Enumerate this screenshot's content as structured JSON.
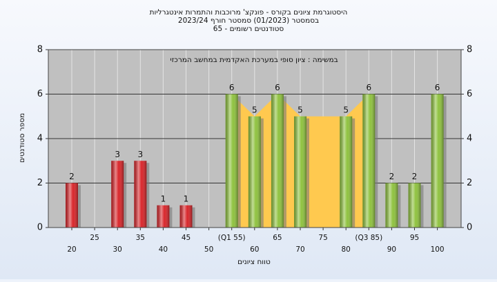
{
  "chart_data": {
    "type": "bar",
    "title": [
      "היסטוגרמת ציונים בקורס - פונקצ' מרוכבות והתמרות אינטגרליות",
      "בסמסטר  (01/2023)  סמסטר חורף 2023/24",
      "סטודנטים רשומים - 65"
    ],
    "annotation": "במשימה : ציון סופי במערכת האקדמית במחשב המרכזי",
    "xlabel": "טווח ציונים",
    "ylabel": "מספר סטודנטים",
    "categories": [
      "20",
      "25",
      "30",
      "35",
      "40",
      "45",
      "50",
      "(Q1 55)",
      "60",
      "65",
      "70",
      "75",
      "80",
      "(Q3 85)",
      "90",
      "95",
      "100"
    ],
    "values": [
      2,
      null,
      3,
      3,
      1,
      1,
      null,
      6,
      5,
      6,
      5,
      null,
      5,
      6,
      2,
      2,
      6
    ],
    "bar_colors": [
      "#d8262b",
      null,
      "#d8262b",
      "#d8262b",
      "#d8262b",
      "#d8262b",
      null,
      "#8fc23f",
      "#8fc23f",
      "#8fc23f",
      "#8fc23f",
      null,
      "#8fc23f",
      "#8fc23f",
      "#8fc23f",
      "#8fc23f",
      "#8fc23f"
    ],
    "quartile_band_color": "#ffc94f",
    "ylim": [
      0,
      8
    ],
    "yticks": [
      0,
      2,
      4,
      6,
      8
    ],
    "grid": true
  }
}
